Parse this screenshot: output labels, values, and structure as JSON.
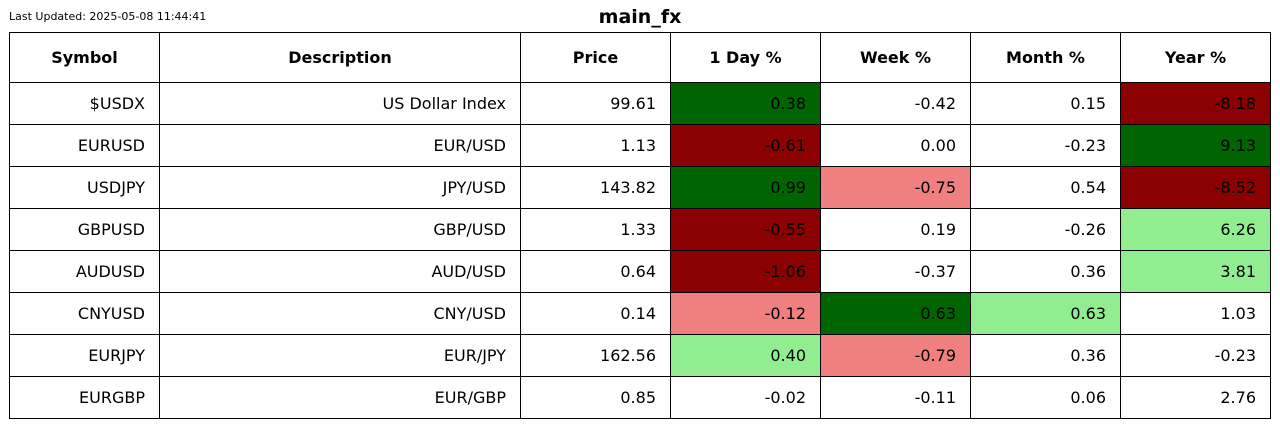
{
  "header": {
    "last_updated": "Last Updated: 2025-05-08 11:44:41"
  },
  "chart_data": {
    "type": "table",
    "title": "main_fx",
    "columns": [
      "Symbol",
      "Description",
      "Price",
      "1 Day %",
      "Week %",
      "Month %",
      "Year %"
    ],
    "rows": [
      [
        "$USDX",
        "US Dollar Index",
        "99.61",
        "0.38",
        "-0.42",
        "0.15",
        "-8.18"
      ],
      [
        "EURUSD",
        "EUR/USD",
        "1.13",
        "-0.61",
        "0.00",
        "-0.23",
        "9.13"
      ],
      [
        "USDJPY",
        "JPY/USD",
        "143.82",
        "0.99",
        "-0.75",
        "0.54",
        "-8.52"
      ],
      [
        "GBPUSD",
        "GBP/USD",
        "1.33",
        "-0.55",
        "0.19",
        "-0.26",
        "6.26"
      ],
      [
        "AUDUSD",
        "AUD/USD",
        "0.64",
        "-1.06",
        "-0.37",
        "0.36",
        "3.81"
      ],
      [
        "CNYUSD",
        "CNY/USD",
        "0.14",
        "-0.12",
        "0.63",
        "0.63",
        "1.03"
      ],
      [
        "EURJPY",
        "EUR/JPY",
        "162.56",
        "0.40",
        "-0.79",
        "0.36",
        "-0.23"
      ],
      [
        "EURGBP",
        "EUR/GBP",
        "0.85",
        "-0.02",
        "-0.11",
        "0.06",
        "2.76"
      ]
    ],
    "cell_colors": [
      [
        null,
        null,
        null,
        "#006400",
        null,
        null,
        "#8b0000"
      ],
      [
        null,
        null,
        null,
        "#8b0000",
        null,
        null,
        "#006400"
      ],
      [
        null,
        null,
        null,
        "#006400",
        "#f08080",
        null,
        "#8b0000"
      ],
      [
        null,
        null,
        null,
        "#8b0000",
        null,
        null,
        "#90ee90"
      ],
      [
        null,
        null,
        null,
        "#8b0000",
        null,
        null,
        "#90ee90"
      ],
      [
        null,
        null,
        null,
        "#f08080",
        "#006400",
        "#90ee90",
        null
      ],
      [
        null,
        null,
        null,
        "#90ee90",
        "#f08080",
        null,
        null
      ],
      [
        null,
        null,
        null,
        null,
        null,
        null,
        null
      ]
    ]
  }
}
